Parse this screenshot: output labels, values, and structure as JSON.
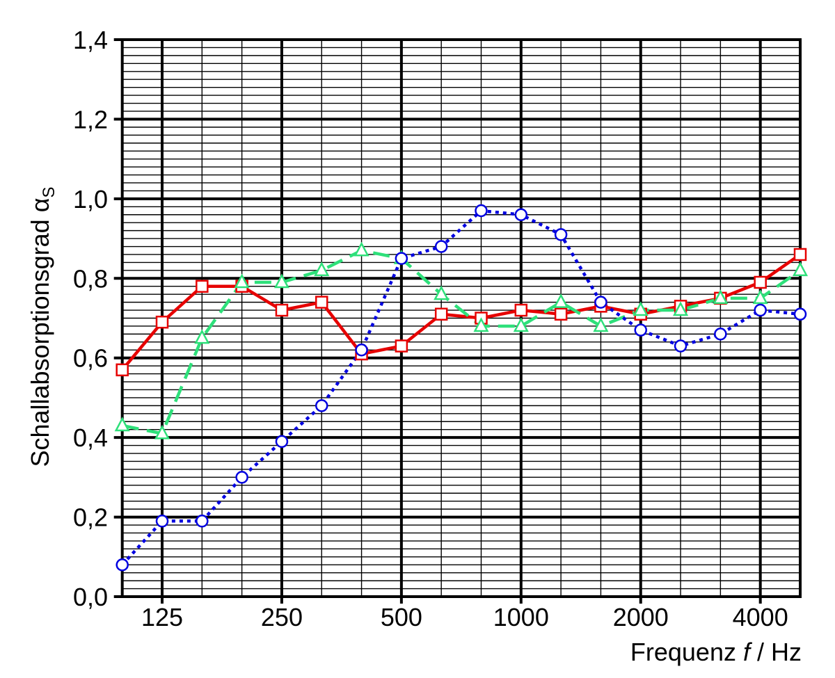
{
  "chart_data": {
    "type": "line",
    "ylabel": {
      "text": "Schallabsorptionsgrad α",
      "subscript": "S"
    },
    "xlabel": {
      "text": "Frequenz",
      "variable": "f",
      "unit": "/ Hz"
    },
    "categories": [
      null,
      "125",
      null,
      null,
      "250",
      null,
      null,
      "500",
      null,
      null,
      "1000",
      null,
      null,
      "2000",
      null,
      null,
      "4000",
      null
    ],
    "series": [
      {
        "color": "#e60000",
        "marker": "square",
        "dash": "solid",
        "values": [
          0.57,
          0.69,
          0.78,
          0.78,
          0.72,
          0.74,
          0.61,
          0.63,
          0.71,
          0.7,
          0.72,
          0.71,
          0.73,
          0.71,
          0.73,
          0.75,
          0.79,
          0.86
        ]
      },
      {
        "color": "#2ee07a",
        "marker": "triangle",
        "dash": "dashed",
        "values": [
          0.43,
          0.41,
          0.65,
          0.79,
          0.79,
          0.82,
          0.87,
          0.85,
          0.76,
          0.68,
          0.68,
          0.74,
          0.68,
          0.72,
          0.72,
          0.75,
          0.75,
          0.82
        ]
      },
      {
        "color": "#0000e0",
        "marker": "circle",
        "dash": "dotted",
        "values": [
          0.08,
          0.19,
          0.19,
          0.3,
          0.39,
          0.48,
          0.62,
          0.85,
          0.88,
          0.97,
          0.96,
          0.91,
          0.74,
          0.67,
          0.63,
          0.66,
          0.72,
          0.71
        ]
      }
    ],
    "ylim": [
      0,
      1.4
    ],
    "yticks": [
      {
        "value": 0,
        "label": "0,0"
      },
      {
        "value": 0.2,
        "label": "0,2"
      },
      {
        "value": 0.4,
        "label": "0,4"
      },
      {
        "value": 0.6,
        "label": "0,6"
      },
      {
        "value": 0.8,
        "label": "0,8"
      },
      {
        "value": 1.0,
        "label": "1,0"
      },
      {
        "value": 1.2,
        "label": "1,2"
      },
      {
        "value": 1.4,
        "label": "1,4"
      }
    ],
    "minor_yticks": [
      0.02,
      0.04,
      0.06,
      0.08,
      0.1,
      0.12,
      0.14,
      0.16,
      0.18,
      0.22,
      0.24,
      0.26,
      0.28,
      0.3,
      0.32,
      0.34,
      0.36,
      0.38,
      0.42,
      0.44,
      0.46,
      0.48,
      0.5,
      0.52,
      0.54,
      0.56,
      0.58,
      0.62,
      0.64,
      0.66,
      0.68,
      0.7,
      0.72,
      0.74,
      0.76,
      0.78,
      0.82,
      0.84,
      0.86,
      0.88,
      0.9,
      0.92,
      0.94,
      0.96,
      0.98,
      1.02,
      1.04,
      1.06,
      1.08,
      1.1,
      1.12,
      1.14,
      1.16,
      1.18,
      1.22,
      1.24,
      1.26,
      1.28,
      1.3,
      1.32,
      1.34,
      1.36,
      1.38
    ],
    "grid": true
  }
}
